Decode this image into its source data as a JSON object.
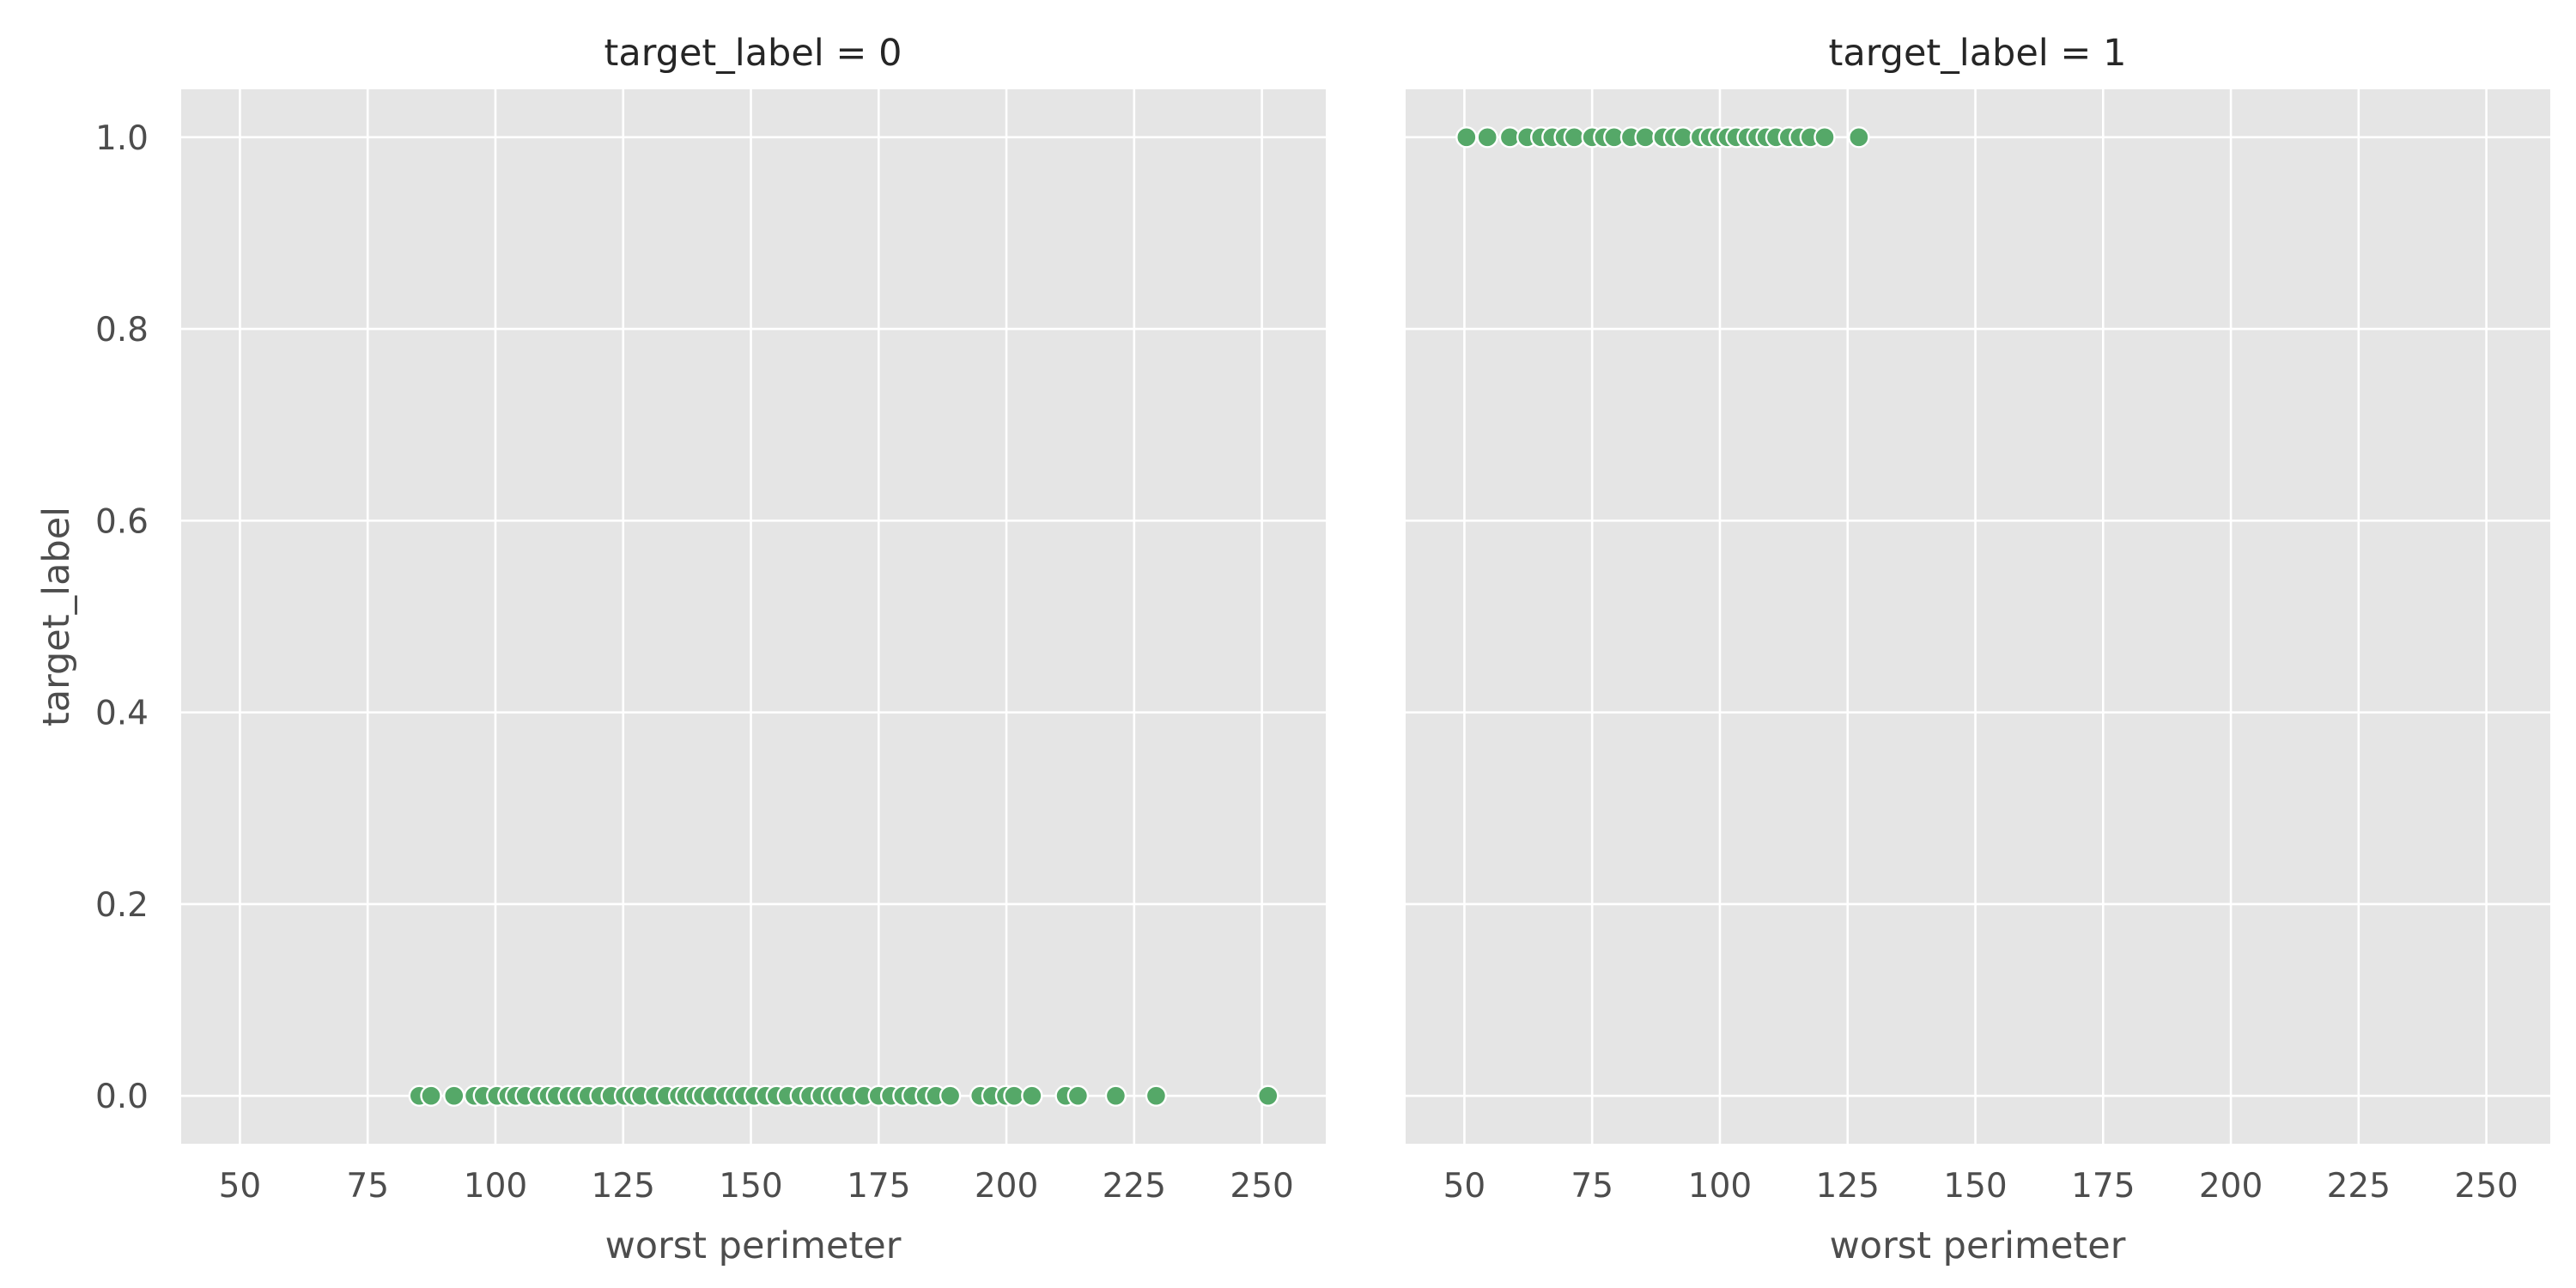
{
  "chart_data": {
    "type": "scatter",
    "facet_variable": "target_label",
    "color": "#55a868",
    "background": "#e5e5e5",
    "grid": true,
    "ylabel": "target_label",
    "xlim": [
      38.5,
      262.5
    ],
    "ylim": [
      -0.05,
      1.05
    ],
    "xticks": [
      50,
      75,
      100,
      125,
      150,
      175,
      200,
      225,
      250
    ],
    "yticks": [
      0.0,
      0.2,
      0.4,
      0.6,
      0.8,
      1.0
    ],
    "ytick_labels": [
      "0.0",
      "0.2",
      "0.4",
      "0.6",
      "0.8",
      "1.0"
    ],
    "panels": [
      {
        "title": "target_label = 0",
        "xlabel": "worst perimeter",
        "show_ylabel": true,
        "y": 0,
        "x": [
          85.1,
          87.4,
          91.9,
          95.9,
          97.7,
          100.3,
          102.5,
          104.0,
          105.9,
          108.4,
          110.4,
          112.0,
          114.3,
          116.2,
          118.2,
          120.5,
          122.7,
          125.3,
          127.0,
          128.5,
          131.2,
          133.5,
          135.9,
          137.3,
          139.1,
          140.6,
          142.4,
          144.9,
          146.8,
          148.6,
          150.7,
          152.9,
          155.0,
          157.2,
          159.7,
          161.6,
          163.8,
          165.8,
          167.3,
          169.5,
          172.1,
          175.0,
          177.4,
          179.8,
          181.6,
          184.2,
          186.2,
          189.0,
          194.9,
          197.2,
          199.9,
          201.5,
          205.0,
          211.6,
          214.0,
          221.4,
          229.3,
          251.2
        ]
      },
      {
        "title": "target_label = 1",
        "xlabel": "worst perimeter",
        "show_ylabel": false,
        "y": 1,
        "x": [
          50.4,
          54.5,
          58.9,
          62.3,
          65.0,
          67.2,
          69.6,
          71.5,
          75.0,
          77.3,
          79.3,
          82.6,
          85.4,
          88.9,
          91.0,
          92.8,
          96.2,
          98.0,
          99.8,
          101.5,
          103.2,
          105.4,
          107.3,
          109.1,
          111.0,
          113.5,
          115.6,
          117.7,
          120.5,
          127.2
        ]
      }
    ]
  }
}
